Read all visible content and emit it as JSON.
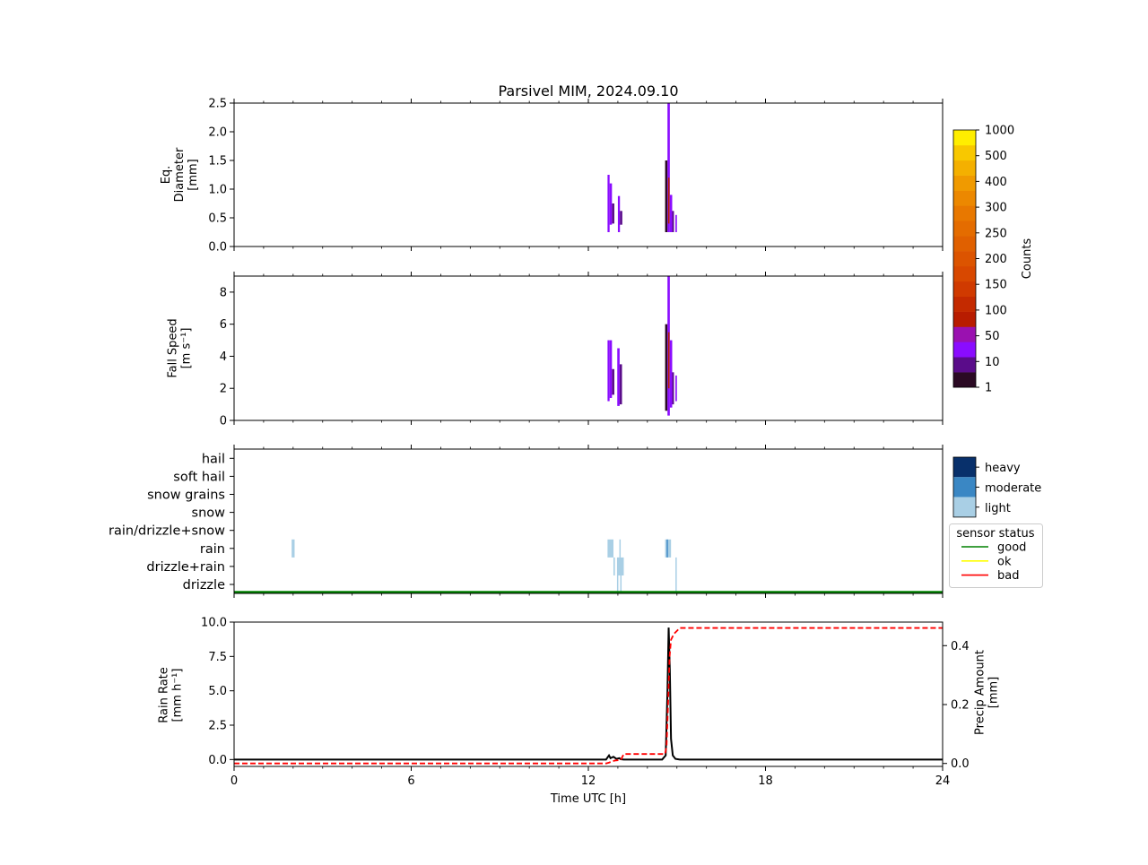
{
  "title": "Parsivel MIM, 2024.09.10",
  "x_axis": {
    "label": "Time UTC [h]",
    "range": [
      0,
      24
    ],
    "ticks": [
      0,
      6,
      12,
      18,
      24
    ],
    "minor_step": 1
  },
  "colorbar_counts": {
    "label": "Counts",
    "levels": [
      "1",
      "10",
      "50",
      "100",
      "150",
      "200",
      "250",
      "300",
      "400",
      "500",
      "1000"
    ],
    "colors": [
      "#2b0a24",
      "#5a0c8a",
      "#8a0cff",
      "#9a11b0",
      "#b81c00",
      "#c42a00",
      "#d03a00",
      "#d84800",
      "#dc5400",
      "#e06000",
      "#e46c00",
      "#e87800",
      "#ec8800",
      "#f09a00",
      "#f4b000",
      "#f8c800",
      "#ffee00"
    ]
  },
  "intensity_legend": {
    "items": [
      {
        "label": "heavy",
        "color": "#08306b"
      },
      {
        "label": "moderate",
        "color": "#3a87c4"
      },
      {
        "label": "light",
        "color": "#a9cfe5"
      }
    ]
  },
  "sensor_legend": {
    "title": "sensor status",
    "items": [
      {
        "label": "good",
        "color": "#008000"
      },
      {
        "label": "ok",
        "color": "#ffff00"
      },
      {
        "label": "bad",
        "color": "#ff0000"
      }
    ]
  },
  "chart_data": [
    {
      "type": "heatmap",
      "id": "diameter",
      "ylabel_lines": [
        "Eq.",
        "Diameter",
        "[mm]"
      ],
      "ylim": [
        0,
        2.5
      ],
      "yticks": [
        0.0,
        0.5,
        1.0,
        1.5,
        2.0,
        2.5
      ],
      "ytick_labels": [
        "0.0",
        "0.5",
        "1.0",
        "1.5",
        "2.0",
        "2.5"
      ],
      "blocks": [
        {
          "t0": 12.65,
          "t1": 12.72,
          "y0": 0.25,
          "y1": 1.25,
          "c": 2
        },
        {
          "t0": 12.72,
          "t1": 12.8,
          "y0": 0.38,
          "y1": 1.1,
          "c": 2
        },
        {
          "t0": 12.8,
          "t1": 12.88,
          "y0": 0.4,
          "y1": 0.75,
          "c": 1
        },
        {
          "t0": 13.0,
          "t1": 13.07,
          "y0": 0.25,
          "y1": 0.88,
          "c": 2
        },
        {
          "t0": 13.07,
          "t1": 13.15,
          "y0": 0.38,
          "y1": 0.62,
          "c": 1
        },
        {
          "t0": 14.6,
          "t1": 14.68,
          "y0": 0.25,
          "y1": 1.5,
          "c": 0
        },
        {
          "t0": 14.68,
          "t1": 14.76,
          "y0": 0.25,
          "y1": 2.5,
          "c": 2
        },
        {
          "t0": 14.7,
          "t1": 14.75,
          "y0": 0.4,
          "y1": 1.2,
          "c": 4
        },
        {
          "t0": 14.76,
          "t1": 14.84,
          "y0": 0.25,
          "y1": 0.9,
          "c": 2
        },
        {
          "t0": 14.84,
          "t1": 14.9,
          "y0": 0.25,
          "y1": 0.62,
          "c": 1
        },
        {
          "t0": 14.95,
          "t1": 15.0,
          "y0": 0.25,
          "y1": 0.55,
          "c": 2
        }
      ]
    },
    {
      "type": "heatmap",
      "id": "fallspeed",
      "ylabel_lines": [
        "Fall Speed",
        "[m s⁻¹]"
      ],
      "ylim": [
        0,
        9
      ],
      "yticks": [
        0,
        2,
        4,
        6,
        8
      ],
      "ytick_labels": [
        "0",
        "2",
        "4",
        "6",
        "8"
      ],
      "blocks": [
        {
          "t0": 12.65,
          "t1": 12.72,
          "y0": 1.2,
          "y1": 5.0,
          "c": 2
        },
        {
          "t0": 12.72,
          "t1": 12.8,
          "y0": 1.4,
          "y1": 5.0,
          "c": 2
        },
        {
          "t0": 12.8,
          "t1": 12.88,
          "y0": 1.6,
          "y1": 3.2,
          "c": 1
        },
        {
          "t0": 12.98,
          "t1": 13.06,
          "y0": 0.9,
          "y1": 4.5,
          "c": 2
        },
        {
          "t0": 13.06,
          "t1": 13.14,
          "y0": 1.0,
          "y1": 3.5,
          "c": 1
        },
        {
          "t0": 14.6,
          "t1": 14.68,
          "y0": 0.6,
          "y1": 6.0,
          "c": 0
        },
        {
          "t0": 14.68,
          "t1": 14.76,
          "y0": 0.3,
          "y1": 9.0,
          "c": 2
        },
        {
          "t0": 14.7,
          "t1": 14.75,
          "y0": 2.0,
          "y1": 5.5,
          "c": 4
        },
        {
          "t0": 14.76,
          "t1": 14.84,
          "y0": 0.8,
          "y1": 5.0,
          "c": 2
        },
        {
          "t0": 14.84,
          "t1": 14.9,
          "y0": 1.0,
          "y1": 3.0,
          "c": 1
        },
        {
          "t0": 14.95,
          "t1": 15.0,
          "y0": 1.2,
          "y1": 2.8,
          "c": 2
        }
      ]
    },
    {
      "type": "heatmap",
      "id": "precip_type",
      "categories": [
        "drizzle",
        "drizzle+rain",
        "rain",
        "rain/drizzle+snow",
        "snow",
        "snow grains",
        "soft hail",
        "hail"
      ],
      "blocks": [
        {
          "t0": 1.95,
          "t1": 2.05,
          "cat": 2,
          "level": "light"
        },
        {
          "t0": 12.65,
          "t1": 12.85,
          "cat": 2,
          "level": "light"
        },
        {
          "t0": 12.85,
          "t1": 12.9,
          "cat": 1,
          "level": "light"
        },
        {
          "t0": 12.97,
          "t1": 13.0,
          "cat": 1,
          "level": "light"
        },
        {
          "t0": 12.97,
          "t1": 13.0,
          "cat": 0,
          "level": "light"
        },
        {
          "t0": 13.05,
          "t1": 13.08,
          "cat": 2,
          "level": "light"
        },
        {
          "t0": 13.0,
          "t1": 13.2,
          "cat": 1,
          "level": "light"
        },
        {
          "t0": 13.08,
          "t1": 13.12,
          "cat": 0,
          "level": "light"
        },
        {
          "t0": 14.6,
          "t1": 14.65,
          "cat": 2,
          "level": "light"
        },
        {
          "t0": 14.65,
          "t1": 14.7,
          "cat": 2,
          "level": "moderate"
        },
        {
          "t0": 14.7,
          "t1": 14.8,
          "cat": 2,
          "level": "light"
        },
        {
          "t0": 14.95,
          "t1": 14.98,
          "cat": 1,
          "level": "light"
        },
        {
          "t0": 14.95,
          "t1": 14.98,
          "cat": 0,
          "level": "light"
        }
      ],
      "sensor_status": {
        "from": 0,
        "to": 24,
        "status": "good"
      }
    },
    {
      "type": "line",
      "id": "rainrate",
      "ylabel_lines": [
        "Rain Rate",
        "[mm h⁻¹]"
      ],
      "ylim": [
        -0.5,
        10.0
      ],
      "yticks": [
        0.0,
        2.5,
        5.0,
        7.5,
        10.0
      ],
      "ytick_labels": [
        "0.0",
        "2.5",
        "5.0",
        "7.5",
        "10.0"
      ],
      "y2label_lines": [
        "Precip Amount",
        "[mm]"
      ],
      "y2lim": [
        -0.01,
        0.48
      ],
      "y2ticks": [
        0.0,
        0.2,
        0.4
      ],
      "y2tick_labels": [
        "0.0",
        "0.2",
        "0.4"
      ],
      "series": [
        {
          "axis": "left",
          "color": "#000000",
          "style": "solid",
          "x": [
            0,
            12.6,
            12.7,
            12.75,
            12.85,
            12.95,
            13.05,
            13.1,
            13.2,
            14.5,
            14.62,
            14.68,
            14.72,
            14.76,
            14.8,
            14.86,
            14.95,
            15.1,
            24
          ],
          "y": [
            0,
            0,
            0.3,
            0.1,
            0.2,
            0.05,
            0.1,
            0.02,
            0,
            0,
            0.3,
            5.0,
            9.6,
            6.5,
            1.5,
            0.3,
            0.05,
            0,
            0
          ]
        },
        {
          "axis": "right",
          "color": "#ff0000",
          "style": "dashed",
          "x": [
            0,
            12.6,
            12.7,
            12.9,
            13.1,
            13.2,
            14.6,
            14.65,
            14.7,
            14.75,
            14.8,
            14.9,
            15.1,
            24
          ],
          "y": [
            0,
            0,
            0.003,
            0.01,
            0.012,
            0.032,
            0.032,
            0.06,
            0.2,
            0.36,
            0.42,
            0.44,
            0.46,
            0.46
          ]
        }
      ]
    }
  ]
}
